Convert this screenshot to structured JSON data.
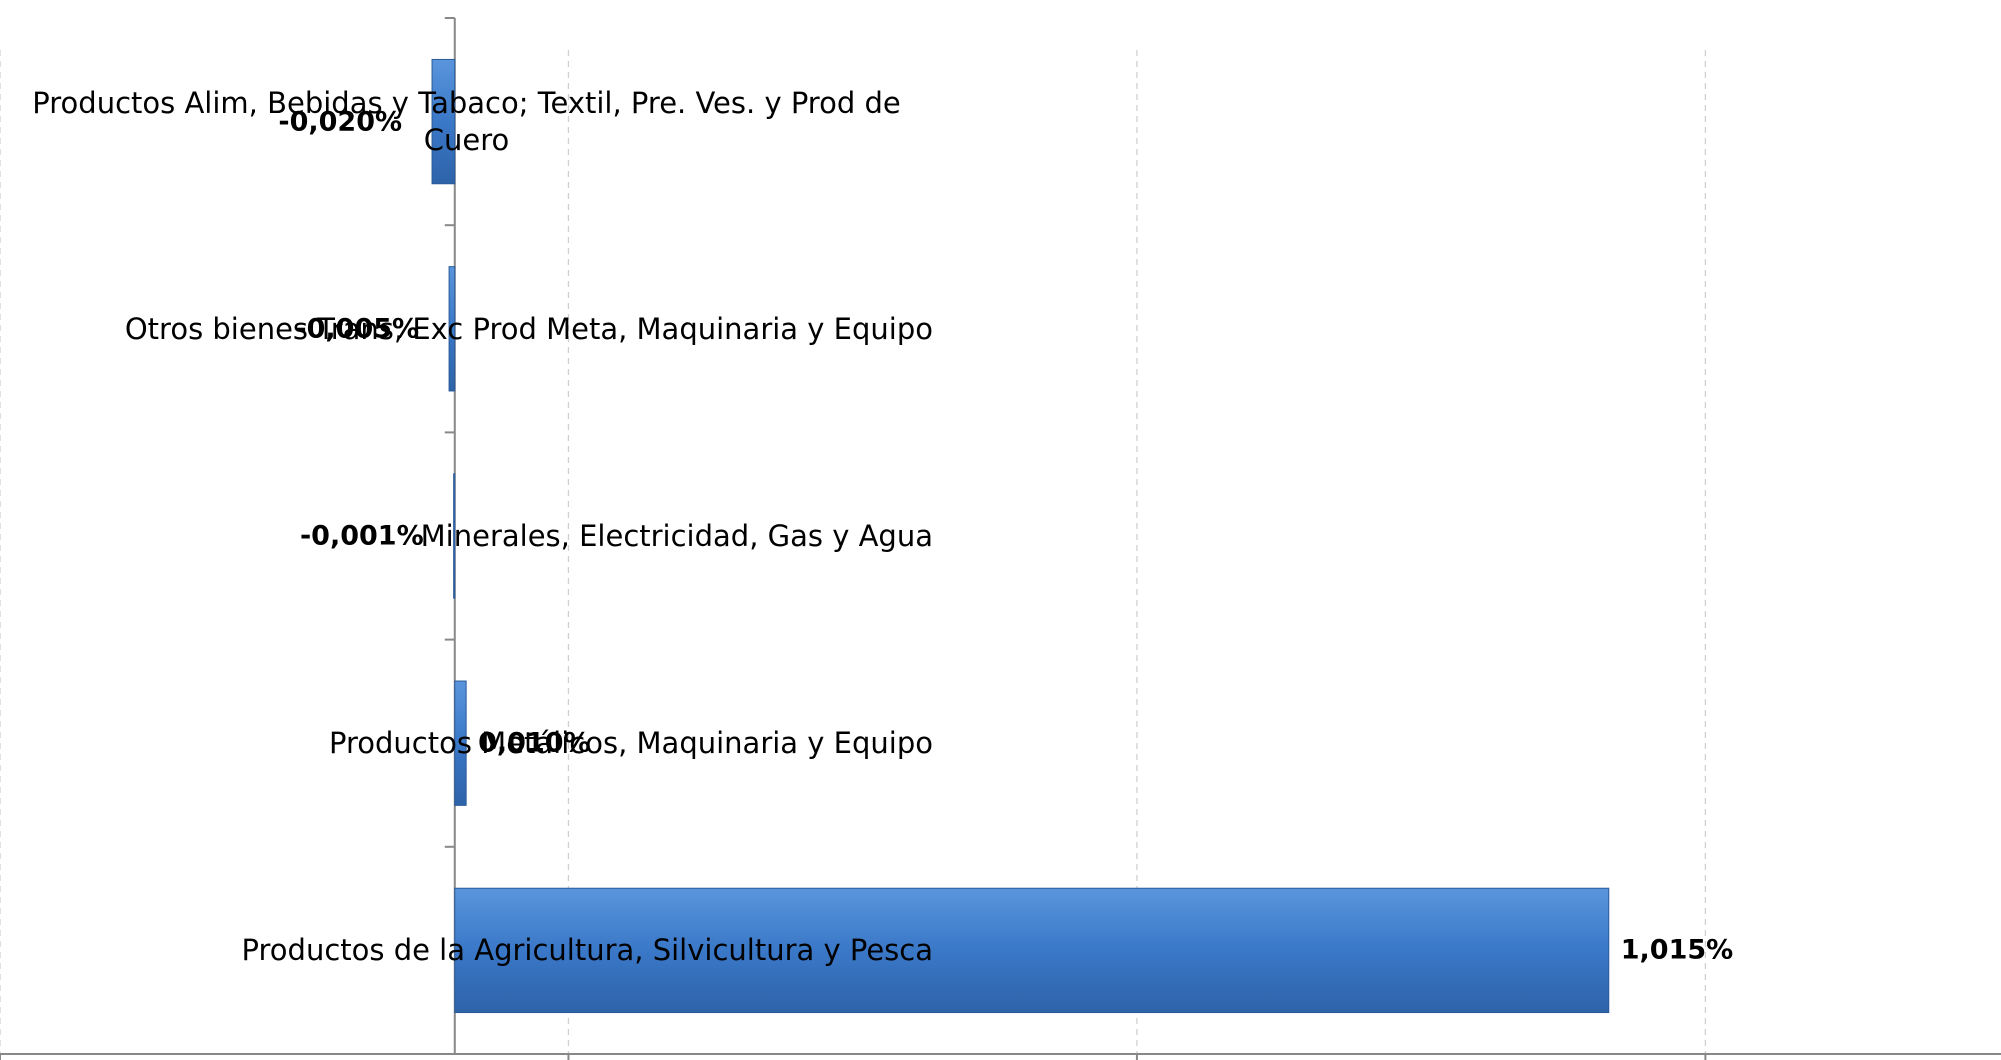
{
  "chart_data": {
    "type": "barh",
    "categories": [
      "Productos  Alim, Bebidas y Tabaco; Textil, Pre. Ves. y Prod de Cuero",
      "Otros bienes Trans, Exc Prod Meta, Maquinaria y Equipo",
      "Minerales, Electricidad, Gas y Agua",
      "Productos Metálicos, Maquinaria y Equipo",
      "Productos de la Agricultura, Silvicultura y Pesca"
    ],
    "values": [
      -0.02,
      -0.005,
      -0.001,
      0.01,
      1.015
    ],
    "value_labels": [
      "-0,020%",
      "-0,005%",
      "-0,001%",
      "0,010%",
      "1,015%"
    ],
    "color": "#3a78c8",
    "xlim": [
      -0.4,
      1.36
    ],
    "xticks": [
      -0.4,
      0.1,
      0.6,
      1.1
    ],
    "grid": true
  }
}
